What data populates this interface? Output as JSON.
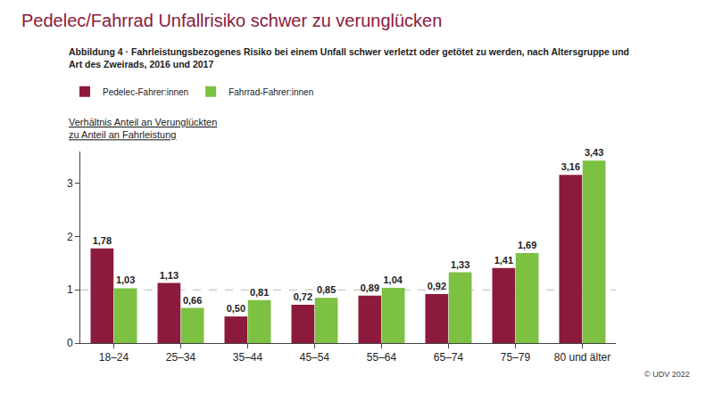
{
  "chart_data": {
    "type": "bar",
    "title": "Pedelec/Fahrrad Unfallrisiko schwer zu verunglücken",
    "subtitle": "Abbildung 4 · Fahrleistungsbezogenes Risiko bei einem Unfall schwer verletzt oder getötet zu werden, nach Altersgruppe und\nArt des Zweirads, 2016 und 2017",
    "y_label": "Verhältnis Anteil an Verunglückten\nzu Anteil an Fahrleistung",
    "source": "© UDV 2022",
    "categories": [
      "18–24",
      "25–34",
      "35–44",
      "45–54",
      "55–64",
      "65–74",
      "75–79",
      "80 und älter"
    ],
    "series": [
      {
        "name": "Pedelec-Fahrer:innen",
        "color": "#8c1a3c",
        "values": [
          1.78,
          1.13,
          0.5,
          0.72,
          0.89,
          0.92,
          1.41,
          3.16
        ],
        "value_labels": [
          "1,78",
          "1,13",
          "0,50",
          "0,72",
          "0,89",
          "0,92",
          "1,41",
          "3,16"
        ]
      },
      {
        "name": "Fahrrad-Fahrer:innen",
        "color": "#7dc142",
        "values": [
          1.03,
          0.66,
          0.81,
          0.85,
          1.04,
          1.33,
          1.69,
          3.43
        ],
        "value_labels": [
          "1,03",
          "0,66",
          "0,81",
          "0,85",
          "1,04",
          "1,33",
          "1,69",
          "3,43"
        ]
      }
    ],
    "reference_line": 1,
    "ylim": [
      0,
      3.6
    ],
    "yticks": [
      0,
      1,
      2,
      3
    ],
    "grid": false,
    "legend": "top-left",
    "data_labels": true
  }
}
